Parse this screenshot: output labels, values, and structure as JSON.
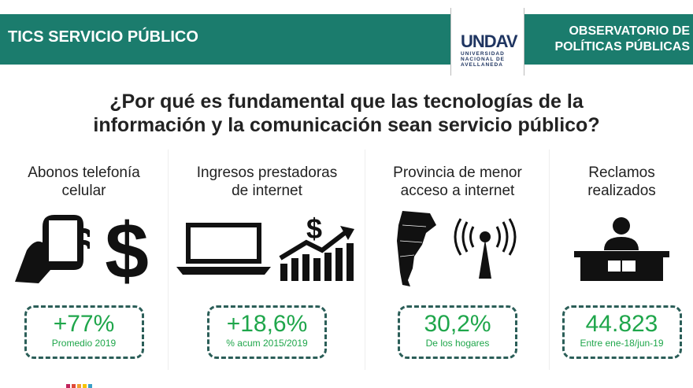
{
  "header": {
    "title": "TICS SERVICIO PÚBLICO",
    "logo_text": "UNDAV",
    "logo_sub": [
      "UNIVERSIDAD",
      "NACIONAL DE",
      "AVELLANEDA"
    ],
    "observatorio": [
      "OBSERVATORIO DE",
      "POLÍTICAS PÚBLICAS"
    ]
  },
  "question": [
    "¿Por qué es fundamental que las tecnologías de la",
    "información y la comunicación sean servicio público?"
  ],
  "colors": {
    "teal": "#1b7c6d",
    "green": "#1fa64b",
    "navy": "#1f3561"
  },
  "columns": [
    {
      "title": [
        "Abonos telefonía",
        "celular"
      ],
      "icons": [
        "phone-hand-icon",
        "dollar-icon"
      ],
      "value": "+77%",
      "sub": "Promedio 2019"
    },
    {
      "title": [
        "Ingresos prestadoras",
        "de internet"
      ],
      "icons": [
        "laptop-icon",
        "money-growth-chart-icon"
      ],
      "value": "+18,6%",
      "sub": "% acum 2015/2019"
    },
    {
      "title": [
        "Provincia de menor",
        "acceso a internet"
      ],
      "icons": [
        "argentina-map-icon",
        "antenna-icon"
      ],
      "value": "30,2%",
      "sub": "De los hogares"
    },
    {
      "title": [
        "Reclamos",
        "realizados"
      ],
      "icons": [
        "person-desk-icon"
      ],
      "value": "44.823",
      "sub": "Entre ene-18/jun-19"
    }
  ]
}
